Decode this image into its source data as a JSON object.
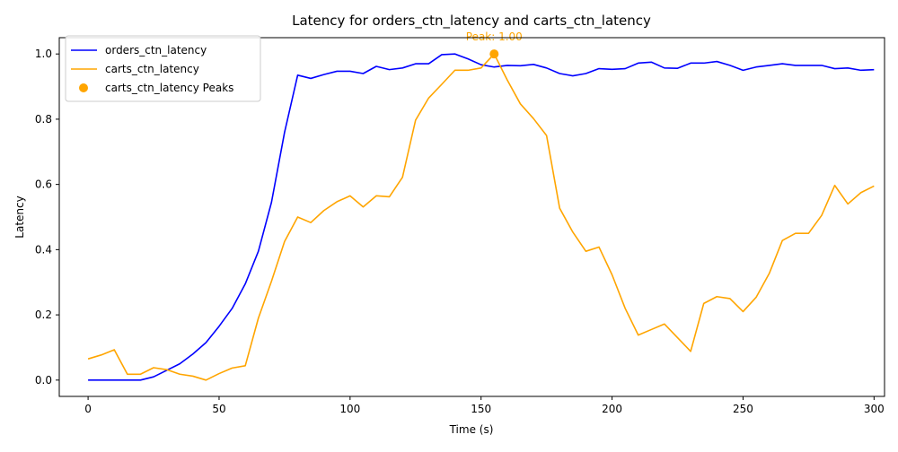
{
  "chart_data": {
    "type": "line",
    "title": "Latency for orders_ctn_latency and carts_ctn_latency",
    "xlabel": "Time (s)",
    "ylabel": "Latency",
    "xlim": [
      -11,
      304
    ],
    "ylim": [
      -0.05,
      1.05
    ],
    "grid": false,
    "legend_position": "upper left",
    "x_ticks": [
      0,
      50,
      100,
      150,
      200,
      250,
      300
    ],
    "x_tick_labels": [
      "0",
      "50",
      "100",
      "150",
      "200",
      "250",
      "300"
    ],
    "y_ticks": [
      0.0,
      0.2,
      0.4,
      0.6,
      0.8,
      1.0
    ],
    "y_tick_labels": [
      "0.0",
      "0.2",
      "0.4",
      "0.6",
      "0.8",
      "1.0"
    ],
    "x": [
      0,
      5,
      10,
      15,
      20,
      25,
      30,
      35,
      40,
      45,
      50,
      55,
      60,
      65,
      70,
      75,
      80,
      85,
      90,
      95,
      100,
      105,
      110,
      115,
      120,
      125,
      130,
      135,
      140,
      145,
      150,
      155,
      160,
      165,
      170,
      175,
      180,
      185,
      190,
      195,
      200,
      205,
      210,
      215,
      220,
      225,
      230,
      235,
      240,
      245,
      250,
      255,
      260,
      265,
      270,
      275,
      280,
      285,
      290,
      295,
      300
    ],
    "series": [
      {
        "name": "orders_ctn_latency",
        "color": "#0000ff",
        "values": [
          0.0,
          0.0,
          0.0,
          0.0,
          0.0,
          0.01,
          0.03,
          0.05,
          0.08,
          0.115,
          0.165,
          0.22,
          0.295,
          0.395,
          0.545,
          0.76,
          0.935,
          0.925,
          0.937,
          0.947,
          0.947,
          0.94,
          0.962,
          0.952,
          0.957,
          0.97,
          0.97,
          0.998,
          1.0,
          0.985,
          0.967,
          0.96,
          0.965,
          0.964,
          0.968,
          0.957,
          0.94,
          0.933,
          0.94,
          0.955,
          0.953,
          0.955,
          0.972,
          0.975,
          0.957,
          0.956,
          0.972,
          0.972,
          0.977,
          0.965,
          0.95,
          0.96,
          0.965,
          0.97,
          0.965,
          0.965,
          0.965,
          0.955,
          0.957,
          0.95,
          0.952
        ]
      },
      {
        "name": "carts_ctn_latency",
        "color": "#ffa500",
        "values": [
          0.065,
          0.077,
          0.093,
          0.018,
          0.018,
          0.038,
          0.032,
          0.018,
          0.012,
          0.0,
          0.02,
          0.037,
          0.044,
          0.19,
          0.303,
          0.425,
          0.5,
          0.483,
          0.52,
          0.547,
          0.565,
          0.531,
          0.565,
          0.562,
          0.622,
          0.797,
          0.865,
          0.907,
          0.95,
          0.95,
          0.957,
          1.0,
          0.92,
          0.847,
          0.802,
          0.75,
          0.527,
          0.454,
          0.395,
          0.408,
          0.323,
          0.22,
          0.138,
          0.155,
          0.172,
          0.13,
          0.088,
          0.235,
          0.256,
          0.25,
          0.21,
          0.254,
          0.327,
          0.428,
          0.45,
          0.45,
          0.505,
          0.597,
          0.54,
          0.575,
          0.595
        ]
      }
    ],
    "peaks": {
      "name": "carts_ctn_latency Peaks",
      "color": "#ffa500",
      "points": [
        {
          "x": 155,
          "y": 1.0,
          "label": "Peak: 1.00"
        }
      ]
    }
  }
}
